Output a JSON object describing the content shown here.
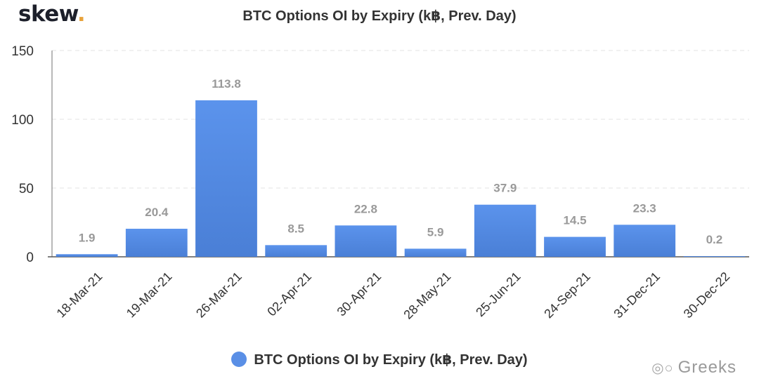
{
  "brand": {
    "name": "skew",
    "dot": "."
  },
  "watermark": {
    "icon": "wechat-icon",
    "text": "Greeks"
  },
  "chart_data": {
    "type": "bar",
    "title": "BTC Options OI by Expiry (k฿, Prev. Day)",
    "xlabel": "",
    "ylabel": "",
    "categories": [
      "18-Mar-21",
      "19-Mar-21",
      "26-Mar-21",
      "02-Apr-21",
      "30-Apr-21",
      "28-May-21",
      "25-Jun-21",
      "24-Sep-21",
      "31-Dec-21",
      "30-Dec-22"
    ],
    "series": [
      {
        "name": "BTC Options OI by Expiry (k฿, Prev. Day)",
        "values": [
          1.9,
          20.4,
          113.8,
          8.5,
          22.8,
          5.9,
          37.9,
          14.5,
          23.3,
          0.2
        ],
        "color": "#5a8fe6"
      }
    ],
    "data_labels": [
      "1.9",
      "20.4",
      "113.8",
      "8.5",
      "22.8",
      "5.9",
      "37.9",
      "14.5",
      "23.3",
      "0.2"
    ],
    "ylim": [
      0,
      150
    ],
    "yticks": [
      0,
      50,
      100,
      150
    ],
    "grid": true,
    "legend": "bottom-center"
  }
}
